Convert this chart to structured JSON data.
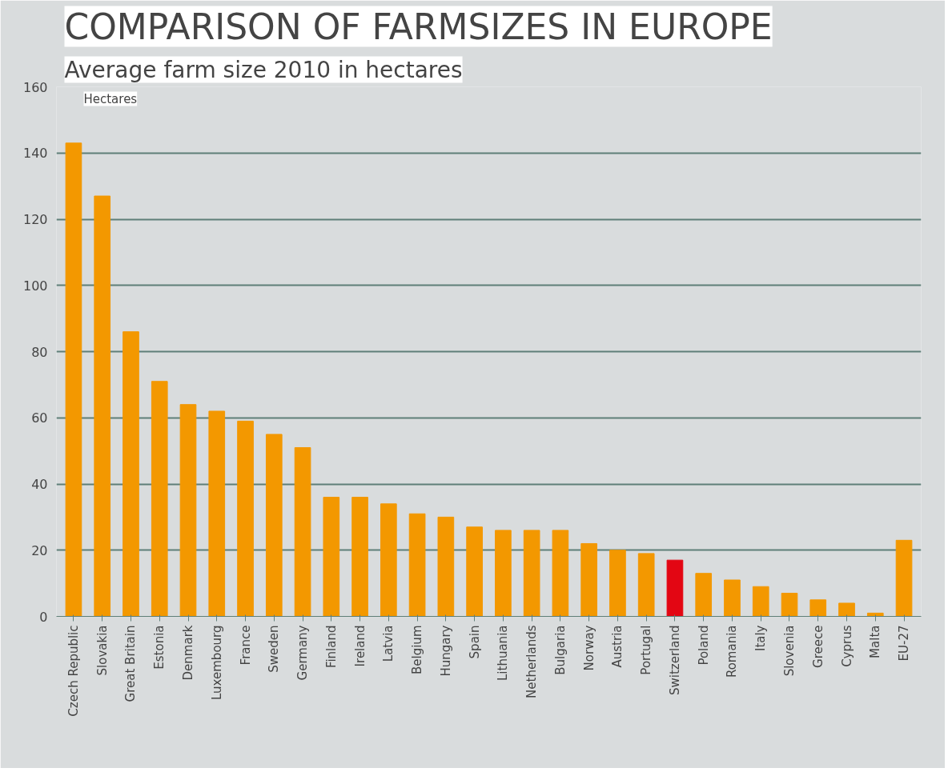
{
  "chart_data": {
    "type": "bar",
    "title": "COMPARISON OF FARMSIZES IN EUROPE",
    "subtitle": "Average farm size 2010 in hectares",
    "ylabel": "Hectares",
    "categories": [
      "Czech Republic",
      "Slovakia",
      "Great Britain",
      "Estonia",
      "Denmark",
      "Luxembourg",
      "France",
      "Sweden",
      "Germany",
      "Finland",
      "Ireland",
      "Latvia",
      "Belgium",
      "Hungary",
      "Spain",
      "Lithuania",
      "Netherlands",
      "Bulgaria",
      "Norway",
      "Austria",
      "Portugal",
      "Switzerland",
      "Poland",
      "Romania",
      "Italy",
      "Slovenia",
      "Greece",
      "Cyprus",
      "Malta",
      "EU-27"
    ],
    "values": [
      143,
      127,
      86,
      71,
      64,
      62,
      59,
      55,
      51,
      36,
      36,
      34,
      31,
      30,
      27,
      26,
      26,
      26,
      22,
      20,
      19,
      17,
      13,
      11,
      9,
      7,
      5,
      4,
      1,
      23
    ],
    "colors": [
      "#f39800",
      "#f39800",
      "#f39800",
      "#f39800",
      "#f39800",
      "#f39800",
      "#f39800",
      "#f39800",
      "#f39800",
      "#f39800",
      "#f39800",
      "#f39800",
      "#f39800",
      "#f39800",
      "#f39800",
      "#f39800",
      "#f39800",
      "#f39800",
      "#f39800",
      "#f39800",
      "#f39800",
      "#e30613",
      "#f39800",
      "#f39800",
      "#f39800",
      "#f39800",
      "#f39800",
      "#f39800",
      "#f39800",
      "#f39800"
    ],
    "ylim": [
      0,
      160
    ],
    "yticks": [
      0,
      20,
      40,
      60,
      80,
      100,
      120,
      140,
      160
    ],
    "grid": "y"
  }
}
